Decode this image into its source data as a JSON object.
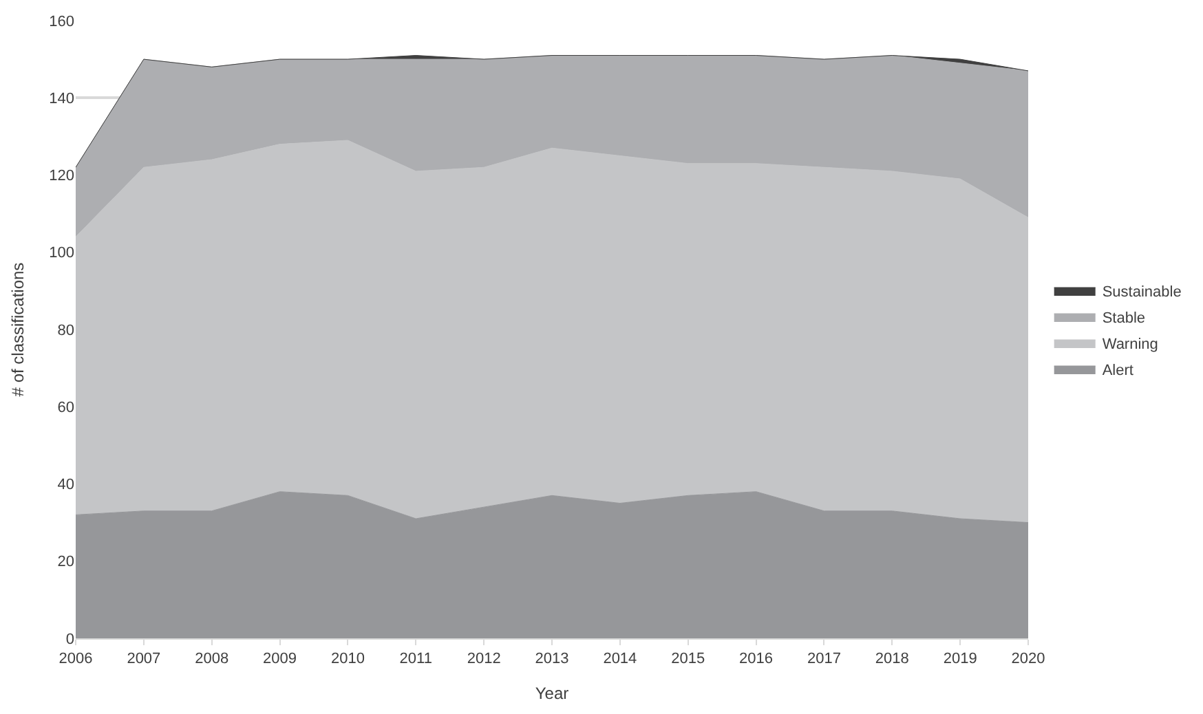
{
  "chart_data": {
    "type": "area",
    "stacked": true,
    "xlabel": "Year",
    "ylabel": "# of classifications",
    "x": [
      2006,
      2007,
      2008,
      2009,
      2010,
      2011,
      2012,
      2013,
      2014,
      2015,
      2016,
      2017,
      2018,
      2019,
      2020
    ],
    "series": [
      {
        "name": "Alert",
        "color": "#96979a",
        "values": [
          32,
          33,
          33,
          38,
          37,
          31,
          34,
          37,
          35,
          37,
          38,
          33,
          33,
          31,
          30
        ]
      },
      {
        "name": "Warning",
        "color": "#c4c5c7",
        "values": [
          72,
          89,
          91,
          90,
          92,
          90,
          88,
          90,
          90,
          86,
          85,
          89,
          88,
          88,
          79
        ]
      },
      {
        "name": "Stable",
        "color": "#adaeb1",
        "values": [
          18,
          28,
          24,
          22,
          21,
          29,
          28,
          24,
          26,
          28,
          28,
          28,
          30,
          30,
          38
        ]
      },
      {
        "name": "Sustainable",
        "color": "#404040",
        "values": [
          0,
          0,
          0,
          0,
          0,
          1,
          0,
          0,
          0,
          0,
          0,
          0,
          0,
          1,
          0
        ]
      }
    ],
    "xlim": [
      2006,
      2020
    ],
    "xticks": [
      2006,
      2007,
      2008,
      2009,
      2010,
      2011,
      2012,
      2013,
      2014,
      2015,
      2016,
      2017,
      2018,
      2019,
      2020
    ],
    "ylim": [
      0,
      160
    ],
    "yticks": [
      0,
      20,
      40,
      60,
      80,
      100,
      120,
      140,
      160
    ],
    "grid": "y",
    "legend": "right"
  }
}
